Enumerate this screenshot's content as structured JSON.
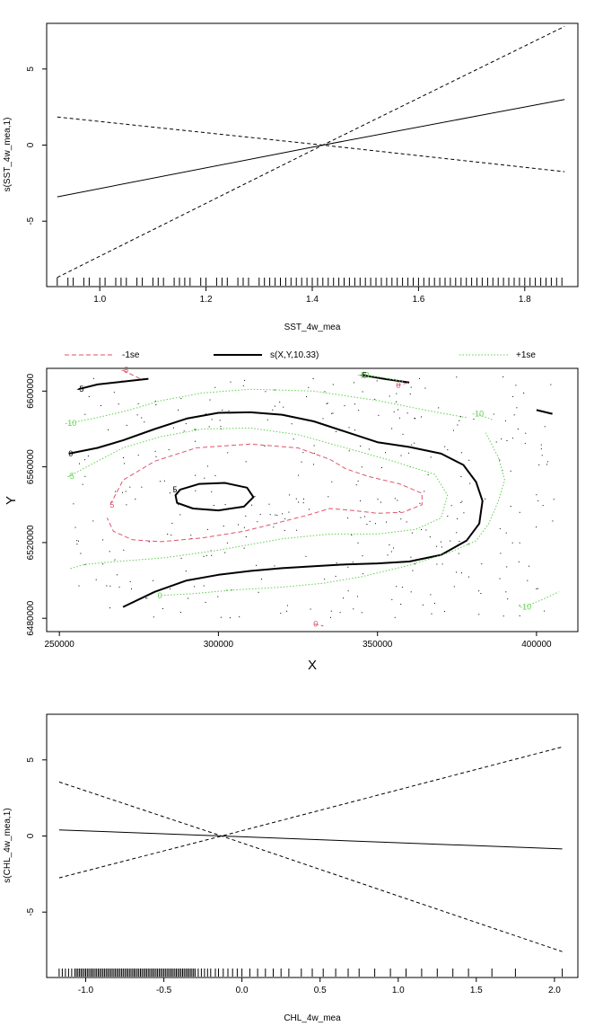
{
  "chart_data": [
    {
      "type": "line",
      "xlabel": "SST_4w_mea",
      "ylabel": "s(SST_4w_mea,1)",
      "xlim": [
        0.9,
        1.9
      ],
      "ylim": [
        -9.3,
        8.0
      ],
      "xticks": [
        1.0,
        1.2,
        1.4,
        1.6,
        1.8
      ],
      "xtick_labels": [
        "1.0",
        "1.2",
        "1.4",
        "1.6",
        "1.8"
      ],
      "yticks": [
        -5,
        0,
        5
      ],
      "ytick_labels": [
        "-5",
        "0",
        "5"
      ],
      "series": [
        {
          "role": "fit",
          "x": [
            0.92,
            1.42,
            1.875
          ],
          "y": [
            -3.4,
            0.0,
            3.0
          ]
        },
        {
          "role": "upper",
          "x": [
            0.92,
            1.42,
            1.875
          ],
          "y": [
            1.85,
            0.0,
            -1.75
          ]
        },
        {
          "role": "lower",
          "x": [
            0.92,
            1.42,
            1.875
          ],
          "y": [
            -8.7,
            0.0,
            7.8
          ]
        }
      ],
      "rug": [
        0.92,
        0.94,
        0.95,
        0.97,
        0.98,
        1.0,
        1.01,
        1.03,
        1.04,
        1.05,
        1.07,
        1.08,
        1.1,
        1.11,
        1.12,
        1.14,
        1.15,
        1.16,
        1.17,
        1.19,
        1.2,
        1.22,
        1.23,
        1.24,
        1.26,
        1.27,
        1.28,
        1.3,
        1.31,
        1.32,
        1.33,
        1.34,
        1.35,
        1.36,
        1.37,
        1.38,
        1.39,
        1.4,
        1.41,
        1.42,
        1.43,
        1.44,
        1.45,
        1.46,
        1.47,
        1.48,
        1.49,
        1.5,
        1.51,
        1.52,
        1.53,
        1.54,
        1.55,
        1.56,
        1.57,
        1.58,
        1.59,
        1.6,
        1.61,
        1.62,
        1.63,
        1.64,
        1.65,
        1.66,
        1.67,
        1.68,
        1.69,
        1.7,
        1.71,
        1.72,
        1.73,
        1.74,
        1.75,
        1.76,
        1.77,
        1.78,
        1.79,
        1.8,
        1.81,
        1.82,
        1.83,
        1.84,
        1.85,
        1.86,
        1.87
      ]
    },
    {
      "type": "contour",
      "xlabel": "X",
      "ylabel": "Y",
      "xlim": [
        246000,
        413000
      ],
      "ylim": [
        6473000,
        6612000
      ],
      "xticks": [
        250000,
        300000,
        350000,
        400000
      ],
      "xtick_labels": [
        "250000",
        "300000",
        "350000",
        "400000"
      ],
      "yticks": [
        6480000,
        6520000,
        6560000,
        6600000
      ],
      "ytick_labels": [
        "6480000",
        "6520000",
        "6560000",
        "6600000"
      ],
      "legend": [
        {
          "label": "-1se",
          "color": "#df536b",
          "style": "dashed"
        },
        {
          "label": "s(X,Y,10.33)",
          "color": "#000000",
          "style": "solid"
        },
        {
          "label": "+1se",
          "color": "#61d04f",
          "style": "dotted"
        }
      ],
      "contour_labels": [
        "-5",
        "-5",
        "0",
        "5",
        "-5",
        "-10",
        "0",
        "5",
        "0",
        "-10",
        "-10",
        "-5",
        "0",
        "-10"
      ],
      "contours": [
        {
          "set": "fit",
          "label_index": 0,
          "closed": false,
          "pts": [
            [
              256000,
              6601000
            ],
            [
              262000,
              6603500
            ],
            [
              270000,
              6605000
            ],
            [
              278000,
              6606500
            ]
          ]
        },
        {
          "set": "fit",
          "label_index": 1,
          "closed": false,
          "pts": [
            [
              345000,
              6608500
            ],
            [
              352000,
              6606500
            ],
            [
              360000,
              6604500
            ]
          ]
        },
        {
          "set": "fit",
          "label_index": 2,
          "closed": false,
          "pts": [
            [
              253000,
              6567000
            ],
            [
              262000,
              6570000
            ],
            [
              270000,
              6574000
            ],
            [
              280000,
              6580000
            ],
            [
              290000,
              6585500
            ],
            [
              300000,
              6588500
            ],
            [
              310000,
              6588800
            ],
            [
              320000,
              6587500
            ],
            [
              330000,
              6584000
            ],
            [
              340000,
              6578500
            ],
            [
              350000,
              6573000
            ],
            [
              360000,
              6570500
            ],
            [
              370000,
              6567000
            ],
            [
              377000,
              6561000
            ],
            [
              381000,
              6552000
            ],
            [
              383000,
              6542000
            ],
            [
              382000,
              6530000
            ],
            [
              378000,
              6521000
            ],
            [
              370000,
              6513500
            ],
            [
              360000,
              6510000
            ],
            [
              350000,
              6509000
            ],
            [
              340000,
              6508500
            ],
            [
              330000,
              6507500
            ],
            [
              320000,
              6506500
            ],
            [
              310000,
              6505000
            ],
            [
              300000,
              6503000
            ],
            [
              290000,
              6500000
            ],
            [
              280000,
              6494000
            ],
            [
              270000,
              6486000
            ]
          ]
        },
        {
          "set": "fit",
          "label_index": 3,
          "closed": true,
          "pts": [
            [
              288000,
              6548000
            ],
            [
              294000,
              6551000
            ],
            [
              302000,
              6551500
            ],
            [
              309000,
              6549000
            ],
            [
              311000,
              6544000
            ],
            [
              308000,
              6539000
            ],
            [
              300000,
              6537000
            ],
            [
              292000,
              6538000
            ],
            [
              287000,
              6541000
            ],
            [
              286500,
              6545000
            ]
          ]
        },
        {
          "set": "fit",
          "label_index": null,
          "closed": false,
          "pts": [
            [
              400000,
              6590000
            ],
            [
              405000,
              6588000
            ]
          ]
        },
        {
          "set": "minus",
          "label_index": 4,
          "closed": false,
          "pts": [
            [
              270000,
              6611000
            ],
            [
              276000,
              6606000
            ]
          ]
        },
        {
          "set": "minus",
          "label_index": 6,
          "closed": false,
          "pts": [
            [
              356000,
              6603000
            ],
            [
              360000,
              6604500
            ]
          ]
        },
        {
          "set": "minus",
          "label_index": 7,
          "closed": false,
          "pts": [
            [
              266000,
              6540000
            ],
            [
              270000,
              6553000
            ],
            [
              280000,
              6563000
            ],
            [
              293000,
              6570000
            ],
            [
              310000,
              6572000
            ],
            [
              325000,
              6570000
            ],
            [
              335000,
              6564000
            ],
            [
              340000,
              6559000
            ],
            [
              347000,
              6555000
            ],
            [
              357000,
              6551000
            ],
            [
              364000,
              6546000
            ],
            [
              364000,
              6540000
            ],
            [
              358000,
              6536000
            ],
            [
              350000,
              6535500
            ],
            [
              342000,
              6537000
            ],
            [
              335000,
              6538000
            ],
            [
              328000,
              6534500
            ],
            [
              320000,
              6531000
            ],
            [
              308000,
              6526000
            ],
            [
              295000,
              6522500
            ],
            [
              282000,
              6520500
            ],
            [
              273000,
              6521500
            ],
            [
              267000,
              6526000
            ],
            [
              265000,
              6533000
            ]
          ]
        },
        {
          "set": "minus",
          "label_index": 8,
          "closed": false,
          "pts": [
            [
              330000,
              6477000
            ],
            [
              333000,
              6476000
            ]
          ]
        },
        {
          "set": "plus",
          "label_index": 5,
          "closed": false,
          "pts": [
            [
              345000,
              6608500
            ],
            [
              352000,
              6607000
            ],
            [
              358000,
              6605000
            ]
          ]
        },
        {
          "set": "plus",
          "label_index": 9,
          "closed": false,
          "pts": [
            [
              381000,
              6588000
            ],
            [
              386000,
              6585000
            ]
          ]
        },
        {
          "set": "plus",
          "label_index": 10,
          "closed": false,
          "pts": [
            [
              253000,
              6583000
            ],
            [
              262000,
              6586000
            ],
            [
              272000,
              6590000
            ],
            [
              282000,
              6595000
            ],
            [
              295000,
              6599000
            ],
            [
              310000,
              6601000
            ],
            [
              330000,
              6600000
            ],
            [
              350000,
              6595000
            ],
            [
              365000,
              6590000
            ],
            [
              378000,
              6586000
            ]
          ]
        },
        {
          "set": "plus",
          "label_index": 11,
          "closed": false,
          "pts": [
            [
              253000,
              6555000
            ],
            [
              262000,
              6563000
            ],
            [
              270000,
              6570000
            ],
            [
              282000,
              6576000
            ],
            [
              295000,
              6580000
            ],
            [
              310000,
              6580500
            ],
            [
              325000,
              6577000
            ],
            [
              340000,
              6570000
            ],
            [
              355000,
              6563000
            ],
            [
              368000,
              6556000
            ],
            [
              372000,
              6545000
            ],
            [
              370000,
              6533000
            ],
            [
              362000,
              6527000
            ],
            [
              350000,
              6524500
            ],
            [
              335000,
              6524500
            ],
            [
              320000,
              6522000
            ],
            [
              300000,
              6516000
            ],
            [
              283000,
              6512000
            ],
            [
              268000,
              6510000
            ],
            [
              258000,
              6508500
            ],
            [
              253000,
              6506000
            ]
          ]
        },
        {
          "set": "plus",
          "label_index": 12,
          "closed": false,
          "pts": [
            [
              281000,
              6492000
            ],
            [
              292000,
              6493000
            ],
            [
              305000,
              6495000
            ],
            [
              320000,
              6496500
            ],
            [
              333000,
              6498500
            ],
            [
              345000,
              6502000
            ],
            [
              360000,
              6508000
            ],
            [
              373000,
              6515000
            ],
            [
              381000,
              6521000
            ],
            [
              385000,
              6530000
            ],
            [
              388000,
              6542000
            ],
            [
              390000,
              6553000
            ],
            [
              388000,
              6565000
            ],
            [
              384000,
              6578000
            ]
          ]
        },
        {
          "set": "plus",
          "label_index": 13,
          "closed": false,
          "pts": [
            [
              396000,
              6486000
            ],
            [
              402000,
              6490000
            ],
            [
              407000,
              6494000
            ]
          ]
        }
      ],
      "points_count": 380
    },
    {
      "type": "line",
      "xlabel": "CHL_4w_mea",
      "ylabel": "s(CHL_4w_mea,1)",
      "xlim": [
        -1.25,
        2.15
      ],
      "ylim": [
        -9.3,
        8.0
      ],
      "xticks": [
        -1.0,
        -0.5,
        0.0,
        0.5,
        1.0,
        1.5,
        2.0
      ],
      "xtick_labels": [
        "-1.0",
        "-0.5",
        "0.0",
        "0.5",
        "1.0",
        "1.5",
        "2.0"
      ],
      "yticks": [
        -5,
        0,
        5
      ],
      "ytick_labels": [
        "-5",
        "0",
        "5"
      ],
      "series": [
        {
          "role": "fit",
          "x": [
            -1.17,
            -0.13,
            2.05
          ],
          "y": [
            0.4,
            0.0,
            -0.85
          ]
        },
        {
          "role": "upper",
          "x": [
            -1.17,
            -0.13,
            2.05
          ],
          "y": [
            3.55,
            0.0,
            -7.6
          ]
        },
        {
          "role": "lower",
          "x": [
            -1.17,
            -0.13,
            2.05
          ],
          "y": [
            -2.75,
            0.0,
            5.85
          ]
        }
      ],
      "rug": [
        -1.17,
        -1.15,
        -1.13,
        -1.11,
        -1.09,
        -1.07,
        -1.06,
        -1.05,
        -1.04,
        -1.03,
        -1.02,
        -1.01,
        -1.0,
        -0.99,
        -0.98,
        -0.97,
        -0.96,
        -0.95,
        -0.94,
        -0.93,
        -0.92,
        -0.91,
        -0.9,
        -0.89,
        -0.88,
        -0.87,
        -0.86,
        -0.85,
        -0.84,
        -0.83,
        -0.82,
        -0.81,
        -0.8,
        -0.79,
        -0.78,
        -0.77,
        -0.76,
        -0.75,
        -0.74,
        -0.73,
        -0.72,
        -0.71,
        -0.7,
        -0.69,
        -0.68,
        -0.67,
        -0.66,
        -0.65,
        -0.64,
        -0.63,
        -0.62,
        -0.61,
        -0.6,
        -0.59,
        -0.58,
        -0.57,
        -0.56,
        -0.55,
        -0.54,
        -0.53,
        -0.52,
        -0.51,
        -0.5,
        -0.49,
        -0.48,
        -0.47,
        -0.46,
        -0.45,
        -0.44,
        -0.43,
        -0.42,
        -0.41,
        -0.4,
        -0.39,
        -0.38,
        -0.37,
        -0.36,
        -0.35,
        -0.34,
        -0.33,
        -0.32,
        -0.31,
        -0.3,
        -0.28,
        -0.26,
        -0.24,
        -0.22,
        -0.2,
        -0.17,
        -0.15,
        -0.12,
        -0.09,
        -0.06,
        -0.03,
        0.0,
        0.05,
        0.1,
        0.15,
        0.2,
        0.25,
        0.3,
        0.38,
        0.45,
        0.52,
        0.6,
        0.68,
        0.75,
        0.85,
        0.95,
        1.05,
        1.15,
        1.25,
        1.35,
        1.45,
        1.6,
        1.75,
        2.05
      ]
    }
  ]
}
